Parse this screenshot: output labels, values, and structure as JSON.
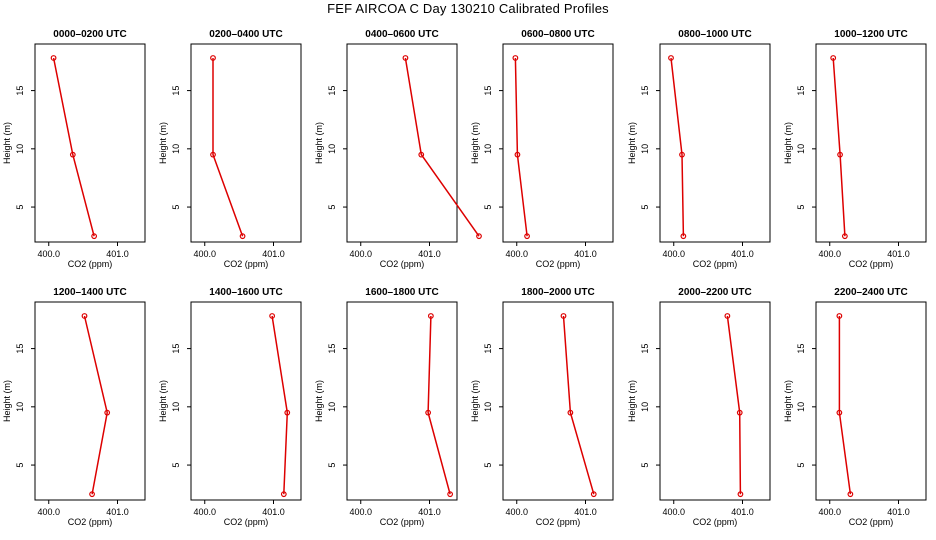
{
  "title": "FEF AIRCOA C  Day 130210  Calibrated Profiles",
  "chart_data": [
    {
      "type": "line",
      "title": "0000–0200 UTC",
      "xlabel": "CO2 (ppm)",
      "ylabel": "Height (m)",
      "xlim": [
        399.8,
        401.4
      ],
      "xticks": [
        400.0,
        401.0
      ],
      "xticklabels": [
        "400.0",
        "401.0"
      ],
      "ylim": [
        2,
        19
      ],
      "yticks": [
        5,
        10,
        15
      ],
      "series": [
        {
          "x": [
            400.66,
            400.35,
            400.07
          ],
          "y": [
            2.5,
            9.5,
            17.8
          ]
        }
      ]
    },
    {
      "type": "line",
      "title": "0200–0400 UTC",
      "xlabel": "CO2 (ppm)",
      "ylabel": "Height (m)",
      "xlim": [
        399.8,
        401.4
      ],
      "xticks": [
        400.0,
        401.0
      ],
      "xticklabels": [
        "400.0",
        "401.0"
      ],
      "ylim": [
        2,
        19
      ],
      "yticks": [
        5,
        10,
        15
      ],
      "series": [
        {
          "x": [
            400.55,
            400.12,
            400.12
          ],
          "y": [
            2.5,
            9.5,
            17.8
          ]
        }
      ]
    },
    {
      "type": "line",
      "title": "0400–0600 UTC",
      "xlabel": "CO2 (ppm)",
      "ylabel": "Height (m)",
      "xlim": [
        399.8,
        401.4
      ],
      "xticks": [
        400.0,
        401.0
      ],
      "xticklabels": [
        "400.0",
        "401.0"
      ],
      "ylim": [
        2,
        19
      ],
      "yticks": [
        5,
        10,
        15
      ],
      "series": [
        {
          "x": [
            401.72,
            400.88,
            400.65
          ],
          "y": [
            2.5,
            9.5,
            17.8
          ]
        }
      ]
    },
    {
      "type": "line",
      "title": "0600–0800 UTC",
      "xlabel": "CO2 (ppm)",
      "ylabel": "Height (m)",
      "xlim": [
        399.8,
        401.4
      ],
      "xticks": [
        400.0,
        401.0
      ],
      "xticklabels": [
        "400.0",
        "401.0"
      ],
      "ylim": [
        2,
        19
      ],
      "yticks": [
        5,
        10,
        15
      ],
      "series": [
        {
          "x": [
            400.15,
            400.01,
            399.98
          ],
          "y": [
            2.5,
            9.5,
            17.8
          ]
        }
      ]
    },
    {
      "type": "line",
      "title": "0800–1000 UTC",
      "xlabel": "CO2 (ppm)",
      "ylabel": "Height (m)",
      "xlim": [
        399.8,
        401.4
      ],
      "xticks": [
        400.0,
        401.0
      ],
      "xticklabels": [
        "400.0",
        "401.0"
      ],
      "ylim": [
        2,
        19
      ],
      "yticks": [
        5,
        10,
        15
      ],
      "series": [
        {
          "x": [
            400.14,
            400.12,
            399.96
          ],
          "y": [
            2.5,
            9.5,
            17.8
          ]
        }
      ]
    },
    {
      "type": "line",
      "title": "1000–1200 UTC",
      "xlabel": "CO2 (ppm)",
      "ylabel": "Height (m)",
      "xlim": [
        399.8,
        401.4
      ],
      "xticks": [
        400.0,
        401.0
      ],
      "xticklabels": [
        "400.0",
        "401.0"
      ],
      "ylim": [
        2,
        19
      ],
      "yticks": [
        5,
        10,
        15
      ],
      "series": [
        {
          "x": [
            400.22,
            400.15,
            400.05
          ],
          "y": [
            2.5,
            9.5,
            17.8
          ]
        }
      ]
    },
    {
      "type": "line",
      "title": "1200–1400 UTC",
      "xlabel": "CO2 (ppm)",
      "ylabel": "Height (m)",
      "xlim": [
        399.8,
        401.4
      ],
      "xticks": [
        400.0,
        401.0
      ],
      "xticklabels": [
        "400.0",
        "401.0"
      ],
      "ylim": [
        2,
        19
      ],
      "yticks": [
        5,
        10,
        15
      ],
      "series": [
        {
          "x": [
            400.63,
            400.85,
            400.52
          ],
          "y": [
            2.5,
            9.5,
            17.8
          ]
        }
      ]
    },
    {
      "type": "line",
      "title": "1400–1600 UTC",
      "xlabel": "CO2 (ppm)",
      "ylabel": "Height (m)",
      "xlim": [
        399.8,
        401.4
      ],
      "xticks": [
        400.0,
        401.0
      ],
      "xticklabels": [
        "400.0",
        "401.0"
      ],
      "ylim": [
        2,
        19
      ],
      "yticks": [
        5,
        10,
        15
      ],
      "series": [
        {
          "x": [
            401.15,
            401.2,
            400.98
          ],
          "y": [
            2.5,
            9.5,
            17.8
          ]
        }
      ]
    },
    {
      "type": "line",
      "title": "1600–1800 UTC",
      "xlabel": "CO2 (ppm)",
      "ylabel": "Height (m)",
      "xlim": [
        399.8,
        401.4
      ],
      "xticks": [
        400.0,
        401.0
      ],
      "xticklabels": [
        "400.0",
        "401.0"
      ],
      "ylim": [
        2,
        19
      ],
      "yticks": [
        5,
        10,
        15
      ],
      "series": [
        {
          "x": [
            401.3,
            400.98,
            401.02
          ],
          "y": [
            2.5,
            9.5,
            17.8
          ]
        }
      ]
    },
    {
      "type": "line",
      "title": "1800–2000 UTC",
      "xlabel": "CO2 (ppm)",
      "ylabel": "Height (m)",
      "xlim": [
        399.8,
        401.4
      ],
      "xticks": [
        400.0,
        401.0
      ],
      "xticklabels": [
        "400.0",
        "401.0"
      ],
      "ylim": [
        2,
        19
      ],
      "yticks": [
        5,
        10,
        15
      ],
      "series": [
        {
          "x": [
            401.12,
            400.78,
            400.68
          ],
          "y": [
            2.5,
            9.5,
            17.8
          ]
        }
      ]
    },
    {
      "type": "line",
      "title": "2000–2200 UTC",
      "xlabel": "CO2 (ppm)",
      "ylabel": "Height (m)",
      "xlim": [
        399.8,
        401.4
      ],
      "xticks": [
        400.0,
        401.0
      ],
      "xticklabels": [
        "400.0",
        "401.0"
      ],
      "ylim": [
        2,
        19
      ],
      "yticks": [
        5,
        10,
        15
      ],
      "series": [
        {
          "x": [
            400.97,
            400.96,
            400.78
          ],
          "y": [
            2.5,
            9.5,
            17.8
          ]
        }
      ]
    },
    {
      "type": "line",
      "title": "2200–2400 UTC",
      "xlabel": "CO2 (ppm)",
      "ylabel": "Height (m)",
      "xlim": [
        399.8,
        401.4
      ],
      "xticks": [
        400.0,
        401.0
      ],
      "xticklabels": [
        "400.0",
        "401.0"
      ],
      "ylim": [
        2,
        19
      ],
      "yticks": [
        5,
        10,
        15
      ],
      "series": [
        {
          "x": [
            400.3,
            400.14,
            400.14
          ],
          "y": [
            2.5,
            9.5,
            17.8
          ]
        }
      ]
    }
  ],
  "colors": {
    "line": "#dd0000",
    "axis": "#000000"
  }
}
